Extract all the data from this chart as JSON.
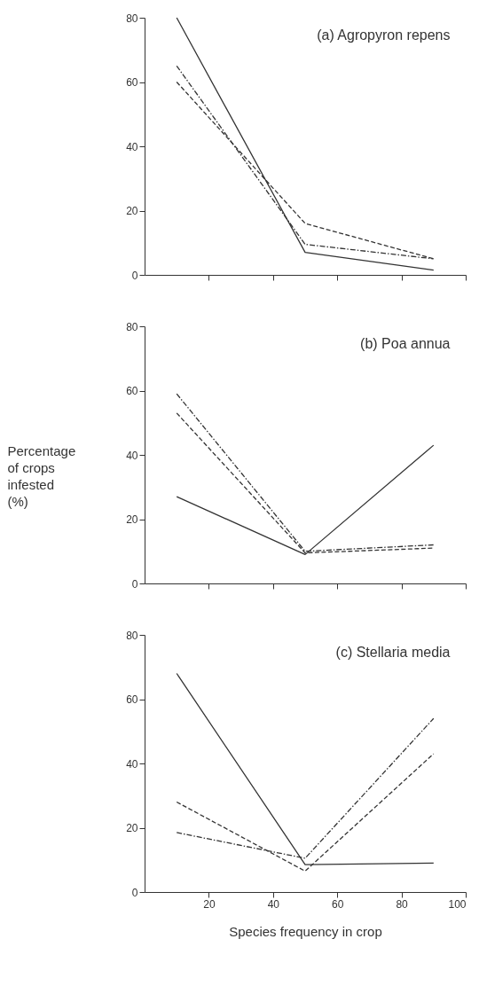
{
  "chart_data": [
    {
      "type": "line",
      "title": "(a) Agropyron repens",
      "x": [
        10,
        50,
        90
      ],
      "xlim": [
        0,
        100
      ],
      "xticks": [
        20,
        40,
        60,
        80,
        100
      ],
      "ylim": [
        0,
        80
      ],
      "yticks": [
        0,
        20,
        40,
        60,
        80
      ],
      "tick_labels": "y",
      "grid": false,
      "series": [
        {
          "color": "#333333",
          "line_style": "solid",
          "values": [
            80,
            7,
            1.5
          ]
        },
        {
          "color": "#333333",
          "line_style": "dashed",
          "values": [
            60,
            16,
            5
          ]
        },
        {
          "color": "#333333",
          "line_style": "dashdot",
          "values": [
            65,
            9.5,
            5
          ]
        }
      ]
    },
    {
      "type": "line",
      "title": "(b) Poa annua",
      "ylabel": "Percentage of crops infested (%)",
      "x": [
        10,
        50,
        90
      ],
      "xlim": [
        0,
        100
      ],
      "xticks": [
        20,
        40,
        60,
        80,
        100
      ],
      "ylim": [
        0,
        80
      ],
      "yticks": [
        0,
        20,
        40,
        60,
        80
      ],
      "tick_labels": "y",
      "grid": false,
      "series": [
        {
          "color": "#333333",
          "line_style": "solid",
          "values": [
            27,
            9,
            43
          ]
        },
        {
          "color": "#333333",
          "line_style": "dashed",
          "values": [
            53,
            9.5,
            11
          ]
        },
        {
          "color": "#333333",
          "line_style": "dashdot",
          "values": [
            59,
            10,
            12
          ]
        }
      ]
    },
    {
      "type": "line",
      "title": "(c) Stellaria media",
      "xlabel": "Species frequency in crop",
      "x": [
        10,
        50,
        90
      ],
      "xlim": [
        0,
        100
      ],
      "xticks": [
        20,
        40,
        60,
        80,
        100
      ],
      "ylim": [
        0,
        80
      ],
      "yticks": [
        0,
        20,
        40,
        60,
        80
      ],
      "grid": false,
      "series": [
        {
          "color": "#333333",
          "line_style": "solid",
          "values": [
            68,
            8.5,
            9
          ]
        },
        {
          "color": "#333333",
          "line_style": "dashed",
          "values": [
            28,
            6.5,
            43
          ]
        },
        {
          "color": "#333333",
          "line_style": "dashdot",
          "values": [
            18.5,
            10.5,
            54
          ]
        }
      ]
    }
  ]
}
